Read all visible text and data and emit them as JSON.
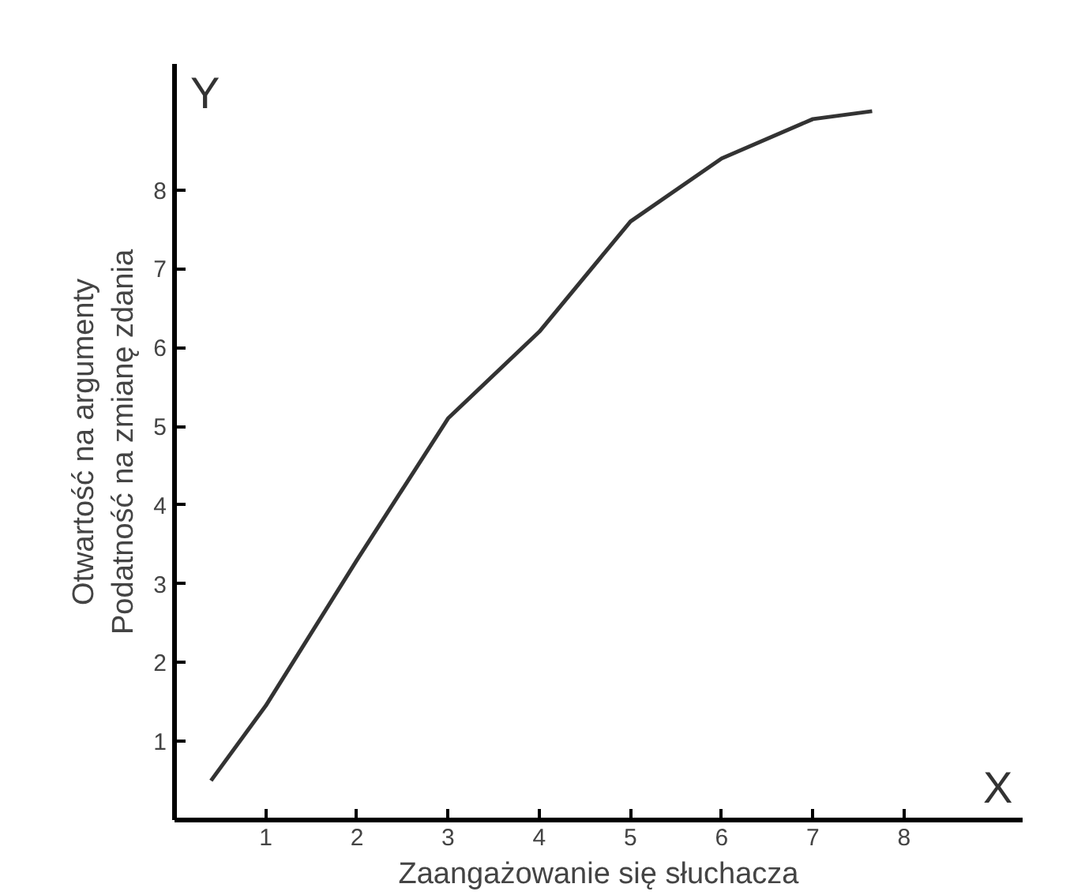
{
  "chart_data": {
    "type": "line",
    "xlabel": "Zaangażowanie się słuchacza",
    "ylabel": "Otwartość na argumenty\nPodatność na zmianę zdania",
    "annotations": [
      "Y",
      "X"
    ],
    "x": [
      0.4,
      1,
      2,
      3,
      4,
      5,
      6,
      7,
      7.65
    ],
    "series": [
      {
        "color": "#333333",
        "values": [
          0.5,
          1.45,
          3.3,
          5.1,
          6.2,
          7.6,
          8.4,
          8.9,
          9.0
        ]
      }
    ],
    "xlim": [
      0,
      9.3
    ],
    "ylim": [
      0,
      9.6
    ],
    "xticks": [
      1,
      2,
      3,
      4,
      5,
      6,
      7,
      8
    ],
    "yticks": [
      1,
      2,
      3,
      4,
      5,
      6,
      7,
      8
    ],
    "grid": false,
    "marker": "none",
    "line_style": "solid"
  }
}
